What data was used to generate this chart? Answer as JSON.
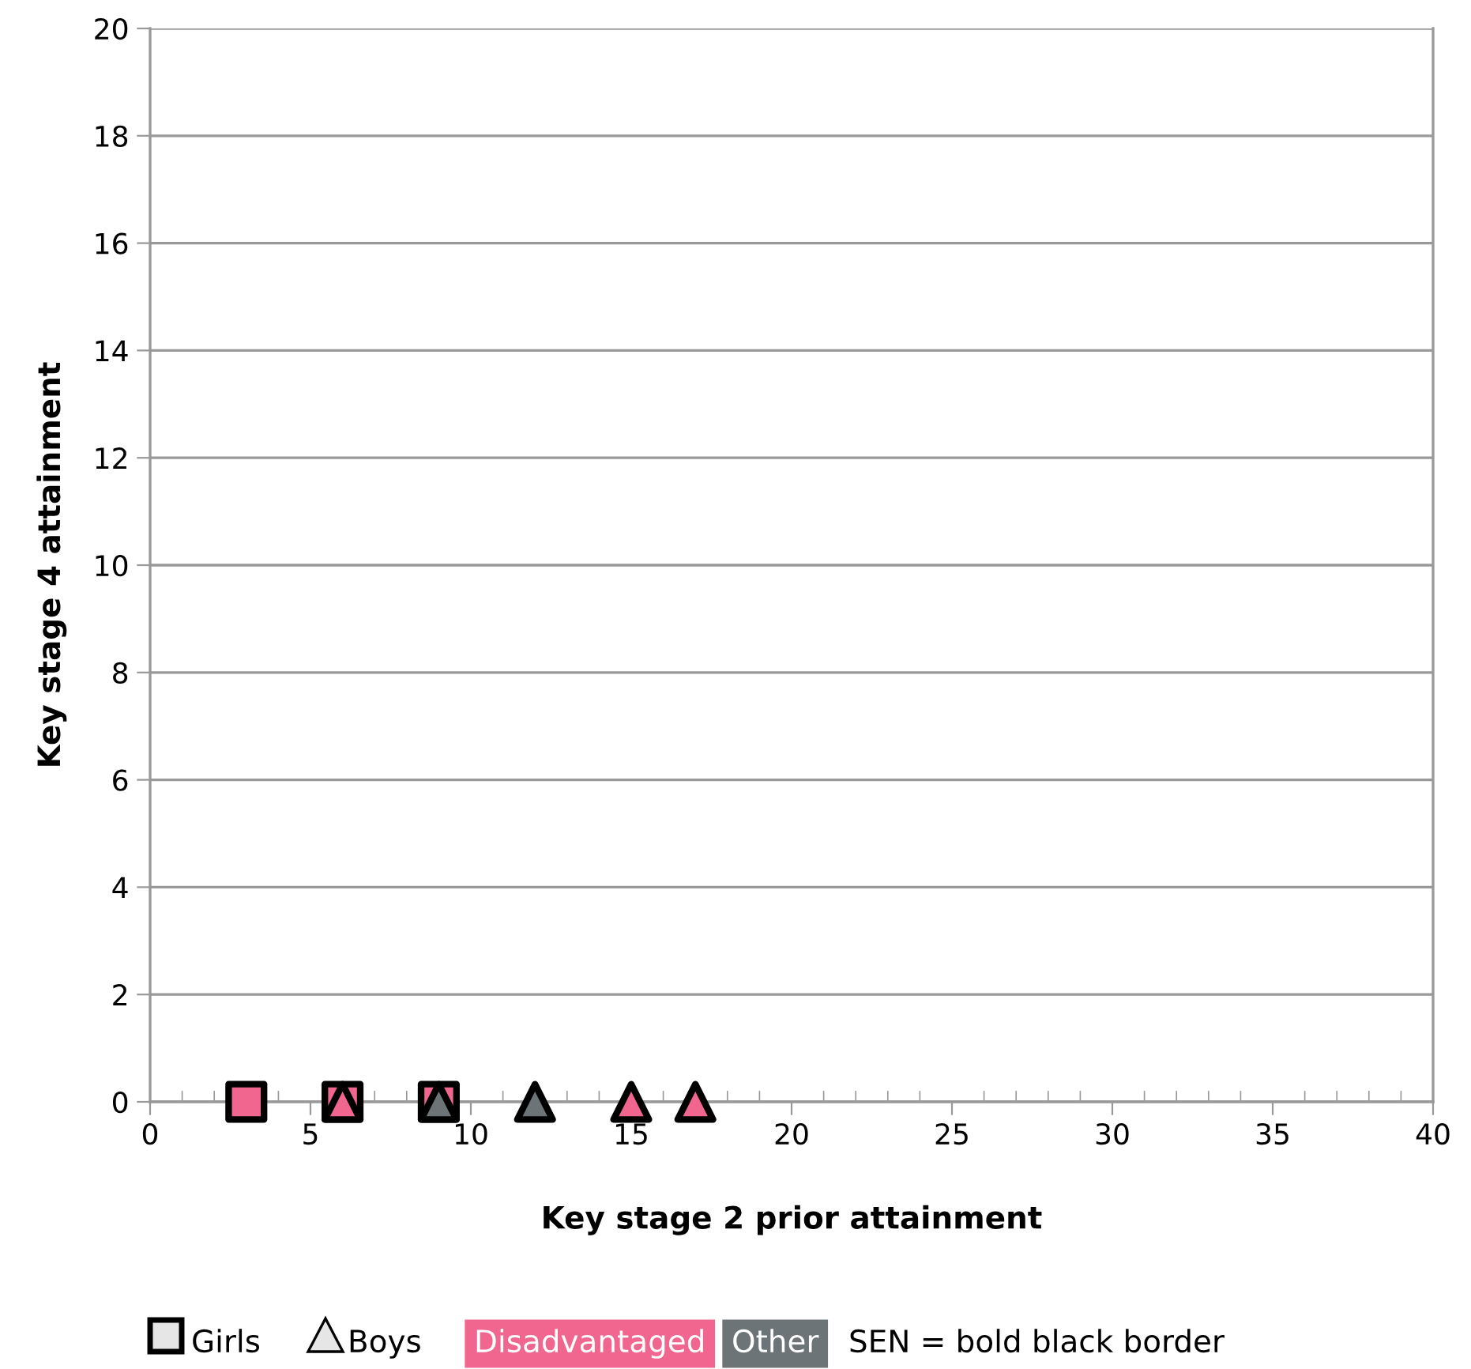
{
  "chart_data": {
    "type": "scatter",
    "xlabel": "Key stage 2 prior attainment",
    "ylabel": "Key stage 4 attainment",
    "xlim": [
      0,
      40
    ],
    "xticks": [
      0,
      5,
      10,
      15,
      20,
      25,
      30,
      35,
      40
    ],
    "ylim": [
      0,
      20
    ],
    "yticks": [
      0,
      2,
      4,
      6,
      8,
      10,
      12,
      14,
      16,
      18,
      20
    ],
    "grid": "y",
    "series": [
      {
        "color": "#f0668f",
        "marker": "square",
        "x": [
          3,
          6,
          9
        ],
        "values": [
          0,
          0,
          0
        ]
      },
      {
        "color": "#f0668f",
        "marker": "triangle",
        "x": [
          6,
          15,
          17
        ],
        "values": [
          0,
          0,
          0
        ]
      },
      {
        "color": "#6d7478",
        "marker": "triangle",
        "x": [
          9,
          12
        ],
        "values": [
          0,
          0
        ]
      }
    ],
    "annotations": [
      "Girls",
      "Boys",
      "Disadvantaged",
      "Other",
      "SEN = bold black border"
    ]
  }
}
